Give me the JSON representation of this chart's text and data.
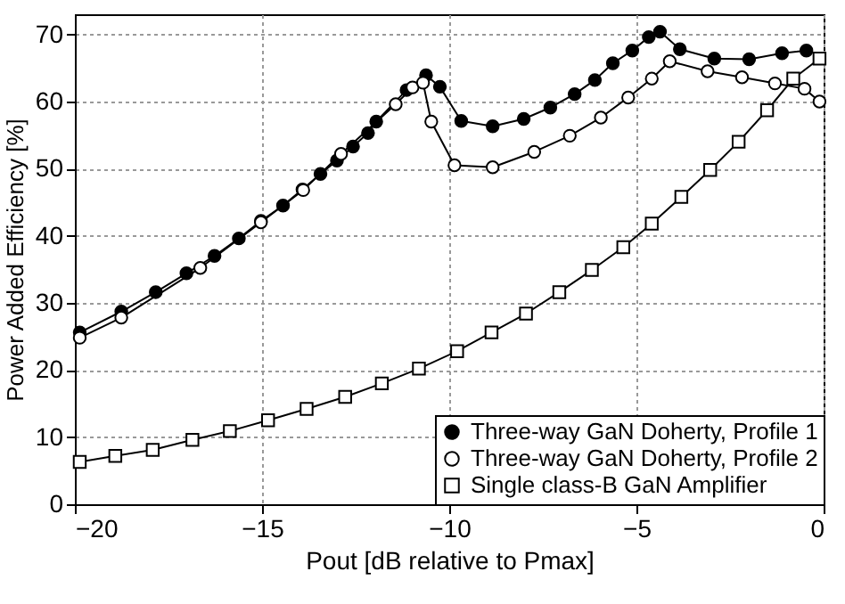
{
  "chart_data": {
    "type": "line",
    "xlabel": "Pout [dB relative to Pmax]",
    "ylabel": "Power Added Efficiency [%]",
    "xlim": [
      -20,
      0
    ],
    "xticks": [
      -20,
      -15,
      -10,
      -5,
      0
    ],
    "ylim": [
      0,
      73
    ],
    "yticks": [
      0,
      10,
      20,
      30,
      40,
      50,
      60,
      70
    ],
    "grid": true,
    "legend": "bottom right",
    "line_style": "solid",
    "series": [
      {
        "name": "Three-way GaN Doherty, Profile 1",
        "color": "#000000",
        "marker": "circle",
        "colors": [
          "#000000",
          "#000000",
          "#000000",
          "#000000",
          "#000000",
          "#000000",
          "#000000",
          "#000000",
          "#000000",
          "#000000",
          "#000000",
          "#000000",
          "#000000",
          "#000000",
          "#000000",
          "#000000",
          "#000000",
          "#000000",
          "#000000",
          "#000000",
          "#000000",
          "#000000",
          "#000000",
          "#000000",
          "#000000",
          "#000000",
          "#000000",
          "#000000",
          "#000000",
          "#000000",
          "#000000",
          "#000000"
        ],
        "x": [
          -19.87,
          -18.76,
          -17.84,
          -17.02,
          -16.27,
          -15.62,
          -15.03,
          -14.44,
          -13.92,
          -13.44,
          -13.0,
          -12.57,
          -12.17,
          -11.95,
          -11.14,
          -10.62,
          -10.25,
          -9.68,
          -8.84,
          -8.01,
          -7.3,
          -6.65,
          -6.11,
          -5.63,
          -5.11,
          -4.67,
          -4.37,
          -3.84,
          -2.92,
          -1.99,
          -1.11,
          -0.46
        ],
        "values": [
          25.6,
          28.7,
          31.6,
          34.4,
          37.0,
          39.6,
          42.2,
          44.5,
          46.9,
          49.2,
          51.2,
          53.3,
          55.3,
          57.0,
          61.7,
          63.9,
          62.2,
          57.1,
          56.3,
          57.4,
          59.1,
          61.1,
          63.2,
          65.7,
          67.6,
          69.6,
          70.4,
          67.8,
          66.4,
          66.3,
          67.2,
          67.6
        ]
      },
      {
        "name": "Three-way GaN Doherty, Profile 2",
        "color": "#000000",
        "marker": "circle",
        "colors": [
          "#ffffff",
          "#ffffff",
          "#ffffff",
          "#ffffff",
          "#ffffff",
          "#ffffff",
          "#ffffff",
          "#ffffff",
          "#ffffff",
          "#ffffff",
          "#ffffff",
          "#ffffff",
          "#ffffff",
          "#ffffff",
          "#ffffff",
          "#ffffff",
          "#ffffff",
          "#ffffff",
          "#ffffff",
          "#ffffff",
          "#ffffff",
          "#ffffff",
          "#ffffff"
        ],
        "x": [
          -19.87,
          -18.76,
          -16.65,
          -15.03,
          -13.9,
          -12.89,
          -11.43,
          -10.98,
          -10.7,
          -10.48,
          -9.86,
          -8.84,
          -7.73,
          -6.78,
          -5.95,
          -5.22,
          -4.59,
          -4.11,
          -3.1,
          -2.18,
          -1.3,
          -0.51,
          -0.11
        ],
        "values": [
          24.8,
          27.8,
          35.2,
          42.0,
          46.8,
          52.2,
          59.6,
          62.1,
          62.8,
          57.0,
          50.5,
          50.2,
          52.5,
          54.9,
          57.6,
          60.6,
          63.4,
          66.0,
          64.5,
          63.6,
          62.7,
          61.9,
          60.0
        ]
      },
      {
        "name": "Single class-B GaN Amplifier",
        "color": "#000000",
        "marker": "square",
        "colors": [
          "#ffffff",
          "#ffffff",
          "#ffffff",
          "#ffffff",
          "#ffffff",
          "#ffffff",
          "#ffffff",
          "#ffffff",
          "#ffffff",
          "#ffffff",
          "#ffffff",
          "#ffffff",
          "#ffffff",
          "#ffffff",
          "#ffffff",
          "#ffffff",
          "#ffffff",
          "#ffffff",
          "#ffffff",
          "#ffffff",
          "#ffffff",
          "#ffffff",
          "#ffffff"
        ],
        "x": [
          -19.87,
          -18.92,
          -17.92,
          -16.86,
          -15.86,
          -14.84,
          -13.81,
          -12.78,
          -11.8,
          -10.81,
          -9.79,
          -8.87,
          -7.95,
          -7.06,
          -6.19,
          -5.35,
          -4.59,
          -3.8,
          -3.03,
          -2.27,
          -1.51,
          -0.81,
          -0.11
        ],
        "values": [
          6.3,
          7.2,
          8.1,
          9.6,
          10.9,
          12.5,
          14.2,
          16.0,
          18.0,
          20.2,
          22.8,
          25.6,
          28.4,
          31.6,
          34.9,
          38.3,
          41.8,
          45.8,
          49.8,
          54.0,
          58.7,
          63.4,
          66.4
        ]
      }
    ]
  }
}
